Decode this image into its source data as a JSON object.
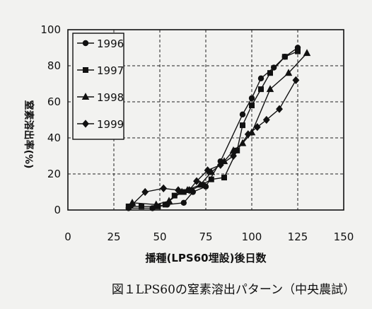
{
  "chart_data": {
    "type": "line",
    "title": "",
    "xlabel": "播種(LPS60埋設)後日数",
    "ylabel": "窒素溶出率(%)",
    "xlim": [
      0,
      150
    ],
    "ylim": [
      0,
      100
    ],
    "xticks": [
      0,
      25,
      50,
      75,
      100,
      125,
      150
    ],
    "yticks": [
      0,
      20,
      40,
      60,
      80,
      100
    ],
    "grid": true,
    "legend_position": "top-left",
    "caption": "図１LPS60の窒素溶出パターン（中央農試）",
    "series": [
      {
        "name": "1996",
        "marker": "circle",
        "x": [
          33,
          46,
          54,
          63,
          68,
          75,
          83,
          95,
          100,
          105,
          112,
          118,
          125
        ],
        "y": [
          1,
          1,
          3,
          4,
          10,
          13,
          27,
          53,
          62,
          73,
          79,
          85,
          90
        ]
      },
      {
        "name": "1997",
        "marker": "square",
        "x": [
          33,
          40,
          49,
          53,
          58,
          63,
          67,
          73,
          78,
          85,
          92,
          95,
          100,
          105,
          110,
          118,
          125
        ],
        "y": [
          2,
          2,
          2,
          3,
          8,
          10,
          11,
          14,
          17,
          18,
          33,
          47,
          58,
          67,
          76,
          85,
          88
        ]
      },
      {
        "name": "1998",
        "marker": "triangle",
        "x": [
          35,
          48,
          55,
          62,
          65,
          72,
          78,
          85,
          90,
          95,
          100,
          110,
          120,
          130
        ],
        "y": [
          4,
          3,
          5,
          10,
          11,
          14,
          21,
          27,
          33,
          37,
          43,
          67,
          76,
          87
        ]
      },
      {
        "name": "1999",
        "marker": "diamond",
        "x": [
          35,
          42,
          52,
          60,
          66,
          70,
          76,
          83,
          90,
          98,
          103,
          108,
          115,
          124
        ],
        "y": [
          3,
          10,
          12,
          11,
          11,
          16,
          22,
          25,
          30,
          42,
          46,
          50,
          56,
          72
        ]
      }
    ]
  }
}
